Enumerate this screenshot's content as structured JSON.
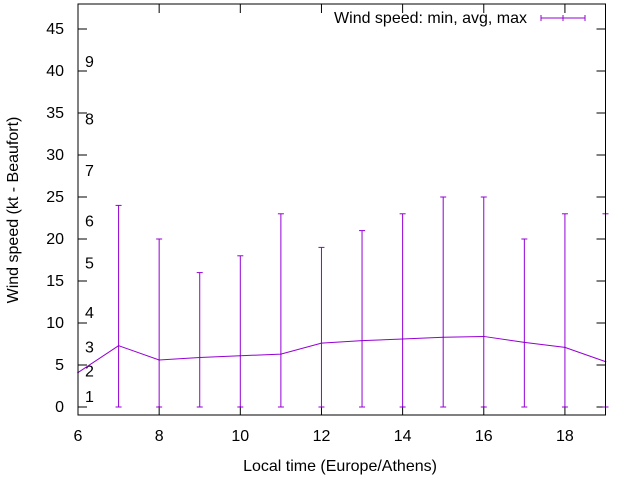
{
  "chart_data": {
    "type": "line",
    "title": "",
    "xlabel": "Local time (Europe/Athens)",
    "ylabel": "Wind speed (kt - Beaufort)",
    "xlim": [
      6,
      19
    ],
    "ylim": [
      -1,
      48
    ],
    "xticks": [
      6,
      8,
      10,
      12,
      14,
      16,
      18
    ],
    "yticks": [
      0,
      5,
      10,
      15,
      20,
      25,
      30,
      35,
      40,
      45
    ],
    "grid": false,
    "legend": {
      "position": "top-right",
      "entries": [
        "Wind speed: min, avg, max"
      ]
    },
    "color": "#9400d3",
    "series": [
      {
        "name": "Wind speed: min, avg, max",
        "x": [
          6,
          7,
          8,
          9,
          10,
          11,
          12,
          13,
          14,
          15,
          16,
          17,
          18,
          19
        ],
        "avg": [
          4.1,
          7.3,
          5.6,
          5.9,
          6.1,
          6.3,
          7.6,
          7.9,
          8.1,
          8.3,
          8.4,
          7.7,
          7.1,
          5.4
        ],
        "min": [
          null,
          0,
          0,
          0,
          0,
          0,
          0,
          0,
          0,
          0,
          0,
          0,
          0,
          0
        ],
        "max": [
          null,
          24,
          20,
          16,
          18,
          23,
          19,
          21,
          23,
          25,
          25,
          20,
          23,
          23
        ]
      }
    ],
    "beaufort_labels": [
      {
        "label": "1",
        "at": 1.2
      },
      {
        "label": "2",
        "at": 4.2
      },
      {
        "label": "3",
        "at": 7.1
      },
      {
        "label": "4",
        "at": 11.2
      },
      {
        "label": "5",
        "at": 17.1
      },
      {
        "label": "6",
        "at": 22.1
      },
      {
        "label": "7",
        "at": 28.1
      },
      {
        "label": "8",
        "at": 34.2
      },
      {
        "label": "9",
        "at": 41.1
      }
    ]
  }
}
